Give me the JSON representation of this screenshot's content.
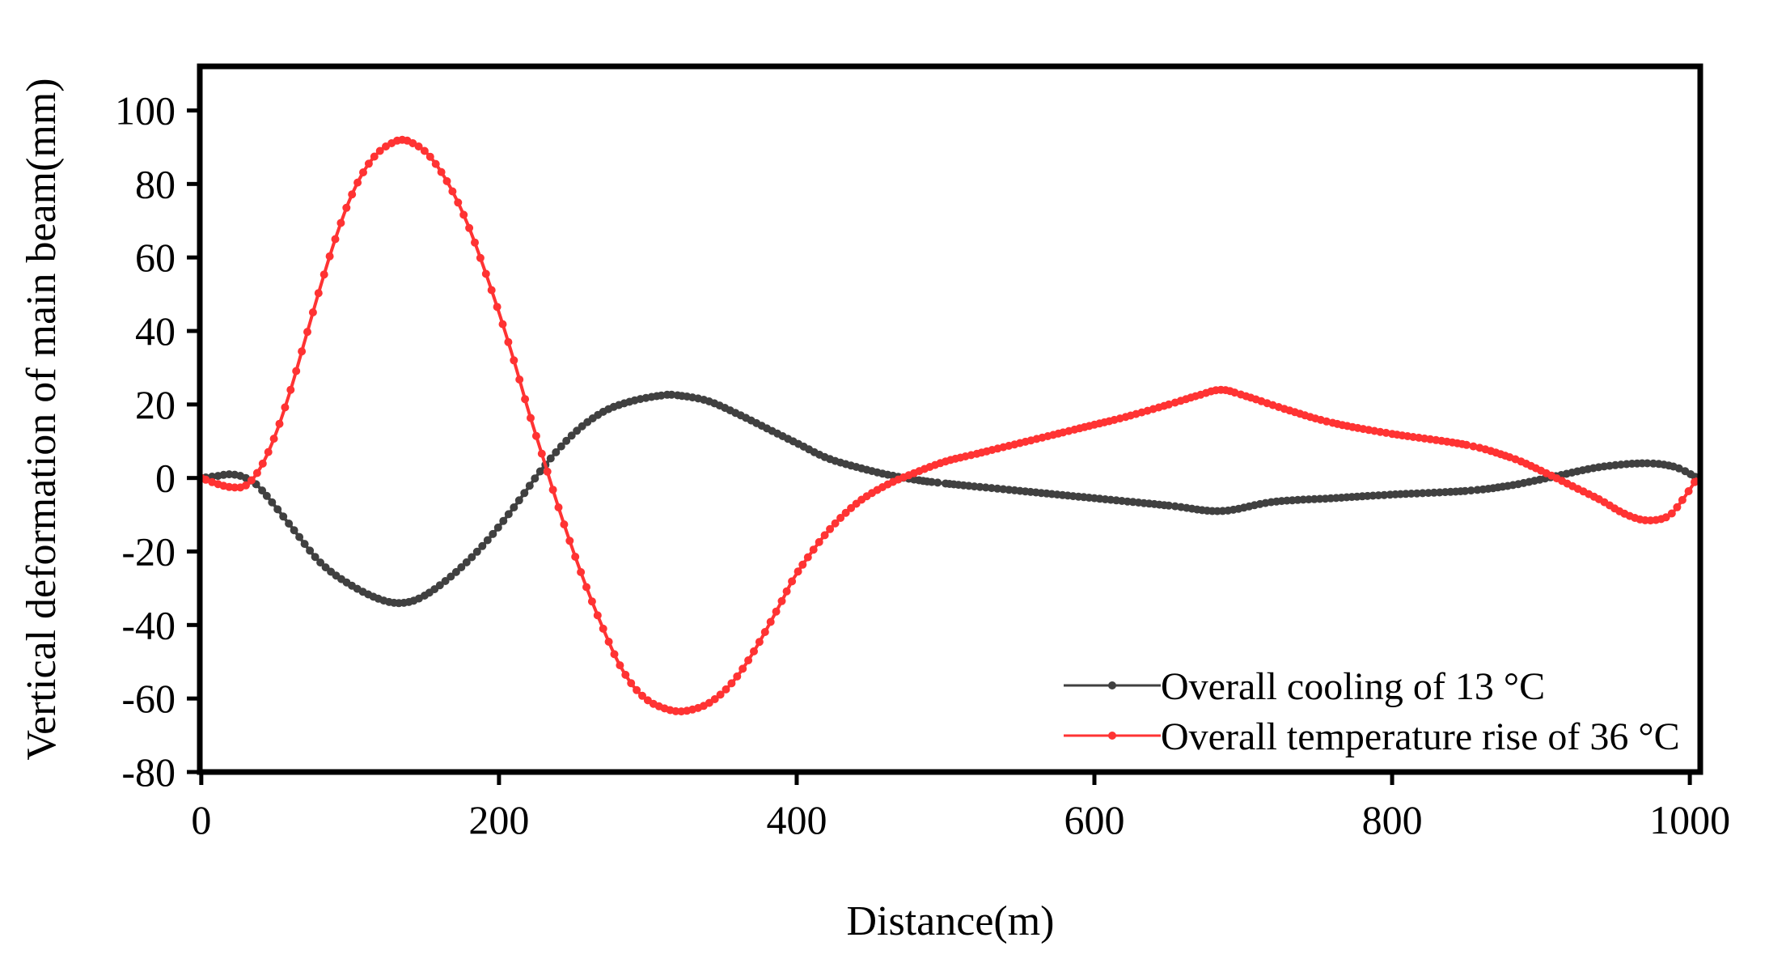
{
  "chart_data": {
    "type": "line",
    "title": "",
    "xlabel": "Distance(m)",
    "ylabel": "Vertical deformation of main beam(mm)",
    "xlim": [
      0,
      1010
    ],
    "ylim": [
      -80,
      110
    ],
    "xticks": [
      0,
      200,
      400,
      600,
      800,
      1000
    ],
    "yticks": [
      -80,
      -60,
      -40,
      -20,
      0,
      20,
      40,
      60,
      80,
      100
    ],
    "xtick_labels": [
      "0",
      "200",
      "400",
      "600",
      "800",
      "1000"
    ],
    "ytick_labels": [
      "-80",
      "-60",
      "-40",
      "-20",
      "0",
      "20",
      "40",
      "60",
      "80",
      "100"
    ],
    "grid": false,
    "legend_position": "bottom-right",
    "series": [
      {
        "name": "Overall cooling of 13 °C",
        "color": "#404040",
        "marker": "circle",
        "x": [
          0,
          10,
          20,
          30,
          40,
          60,
          80,
          100,
          120,
          135,
          150,
          170,
          190,
          210,
          230,
          250,
          270,
          290,
          310,
          320,
          340,
          360,
          380,
          400,
          420,
          440,
          460,
          480,
          500,
          550,
          600,
          650,
          685,
          720,
          760,
          800,
          850,
          880,
          910,
          940,
          970,
          990,
          1005
        ],
        "y": [
          0,
          0.5,
          1,
          0,
          -3,
          -13,
          -23,
          -29,
          -33,
          -34,
          -32,
          -26,
          -18,
          -8,
          3,
          12,
          18,
          21,
          22.5,
          22.5,
          21,
          17.5,
          13.5,
          9.5,
          5.5,
          3,
          1,
          -0.5,
          -1.5,
          -3.5,
          -5.5,
          -7.5,
          -9,
          -6.5,
          -5.5,
          -4.5,
          -3.5,
          -2,
          0.5,
          3,
          4,
          3,
          0
        ]
      },
      {
        "name": "Overall temperature rise of 36 °C",
        "color": "#ff3333",
        "marker": "circle",
        "x": [
          0,
          10,
          20,
          30,
          40,
          50,
          60,
          70,
          80,
          90,
          100,
          110,
          120,
          130,
          135,
          140,
          150,
          160,
          170,
          180,
          190,
          200,
          210,
          220,
          230,
          240,
          250,
          260,
          270,
          280,
          290,
          300,
          310,
          320,
          330,
          340,
          350,
          360,
          370,
          380,
          390,
          400,
          420,
          440,
          460,
          480,
          500,
          520,
          550,
          580,
          600,
          620,
          650,
          670,
          685,
          700,
          730,
          760,
          800,
          850,
          880,
          900,
          920,
          940,
          955,
          970,
          985,
          995,
          1005
        ],
        "y": [
          0,
          -1.5,
          -2.5,
          -2,
          3,
          12,
          24,
          38,
          52,
          65,
          76,
          84,
          89,
          91.5,
          92,
          91.5,
          89,
          84,
          77,
          68,
          57,
          45,
          32,
          18,
          5,
          -8,
          -20,
          -31,
          -41,
          -50,
          -56.5,
          -60.5,
          -62.5,
          -63.5,
          -63,
          -61.5,
          -58.5,
          -54,
          -48,
          -41,
          -33.5,
          -26,
          -15,
          -7,
          -2,
          1.5,
          4.5,
          6.5,
          9.5,
          12.5,
          14.5,
          16.5,
          20,
          22.5,
          24,
          22.5,
          18.5,
          15,
          12,
          9,
          5.5,
          2,
          -2,
          -6,
          -9.5,
          -11.5,
          -10.5,
          -6,
          0
        ]
      }
    ]
  }
}
